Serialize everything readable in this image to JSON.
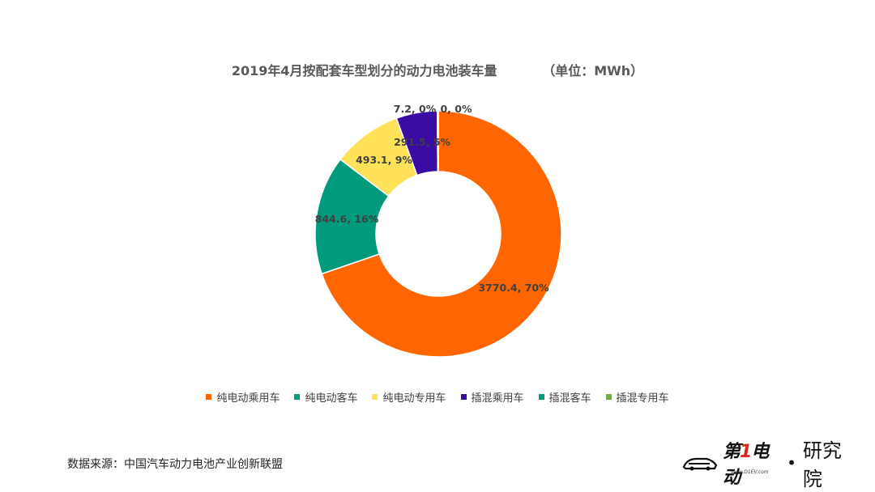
{
  "chart_data": {
    "type": "pie",
    "title": "2019年4月按配套车型划分的动力电池装车量",
    "unit_label": "（单位：MWh）",
    "categories": [
      "纯电动乘用车",
      "纯电动客车",
      "纯电动专用车",
      "插混乘用车",
      "插混客车",
      "插混专用车"
    ],
    "values": [
      3770.4,
      844.6,
      493.1,
      291.5,
      7.2,
      0
    ],
    "percent_labels": [
      "70%",
      "16%",
      "9%",
      "5%",
      "0%",
      "0%"
    ],
    "data_labels": [
      "3770.4, 70%",
      "844.6, 16%",
      "493.1, 9%",
      "291.5, 5%",
      "7.2, 0%",
      "0, 0%"
    ],
    "colors": [
      "#ff6600",
      "#009b7d",
      "#ffe15a",
      "#3a0ca3",
      "#009b7d",
      "#70ad47"
    ],
    "legend_position": "bottom",
    "donut": true
  },
  "footer": {
    "source": "数据来源：中国汽车动力电池产业创新联盟"
  },
  "logo": {
    "brand_prefix": "第",
    "brand_one": "1",
    "brand_suffix": "电动",
    "dot": "•",
    "sub": "研究院",
    "url": "www.D1EV.com"
  }
}
